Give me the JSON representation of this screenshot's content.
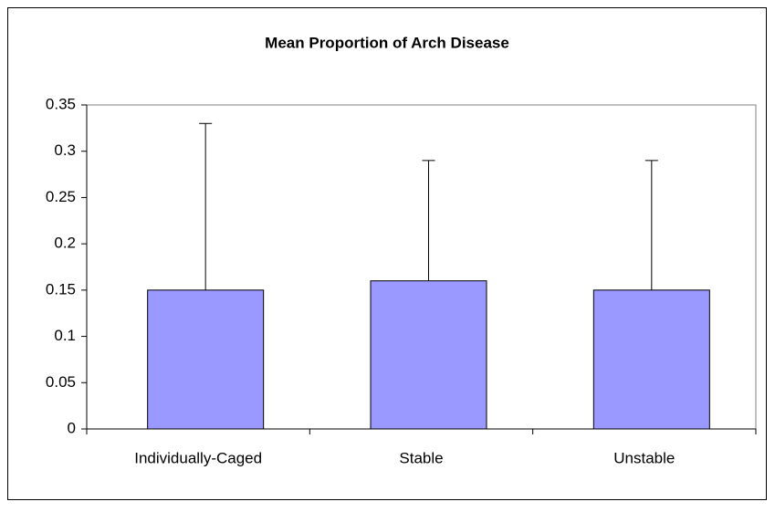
{
  "chart_data": {
    "type": "bar",
    "title": "Mean Proportion of Arch Disease",
    "categories": [
      "Individually-Caged",
      "Stable",
      "Unstable"
    ],
    "values": [
      0.15,
      0.16,
      0.15
    ],
    "errors": [
      0.18,
      0.13,
      0.14
    ],
    "color": "#9999ff",
    "ylim": [
      0,
      0.35
    ],
    "yticks": [
      0,
      0.05,
      0.1,
      0.15,
      0.2,
      0.25,
      0.3,
      0.35
    ],
    "grid": false
  }
}
